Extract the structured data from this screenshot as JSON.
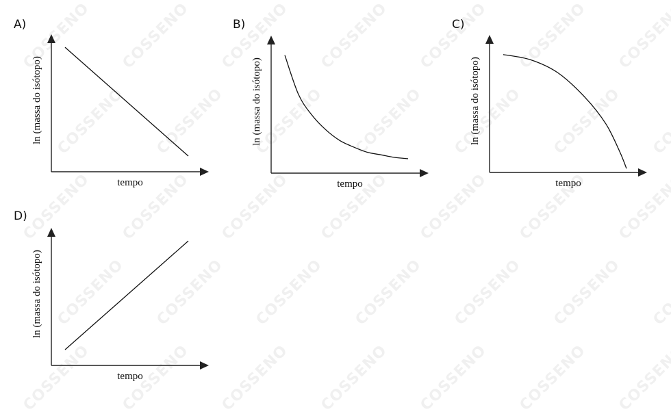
{
  "watermark": {
    "text": "COSSENO",
    "color": "#e9e9e9"
  },
  "colors": {
    "line": "#111111",
    "axis": "#222222"
  },
  "chart_data": [
    {
      "panel": "A)",
      "type": "line",
      "shape": "linear-decreasing",
      "xlabel": "tempo",
      "ylabel": "ln (massa do isótopo)",
      "x": [
        0.1,
        1.0
      ],
      "y": [
        0.95,
        0.12
      ],
      "xlim": [
        0,
        1.15
      ],
      "ylim": [
        0,
        1.05
      ],
      "grid": false
    },
    {
      "panel": "B)",
      "type": "line",
      "shape": "exponential-decay",
      "xlabel": "tempo",
      "ylabel": "ln (massa do isótopo)",
      "x": [
        0.1,
        0.2,
        0.3,
        0.4,
        0.5,
        0.6,
        0.7,
        0.8,
        0.9,
        1.0
      ],
      "y": [
        0.9,
        0.6,
        0.44,
        0.33,
        0.25,
        0.2,
        0.16,
        0.14,
        0.12,
        0.11
      ],
      "xlim": [
        0,
        1.15
      ],
      "ylim": [
        0,
        1.05
      ],
      "grid": false
    },
    {
      "panel": "C)",
      "type": "line",
      "shape": "concave-down-decreasing",
      "xlabel": "tempo",
      "ylabel": "ln (massa do isótopo)",
      "x": [
        0.1,
        0.3,
        0.5,
        0.7,
        0.85,
        0.95,
        1.0
      ],
      "y": [
        0.9,
        0.86,
        0.76,
        0.57,
        0.37,
        0.16,
        0.03
      ],
      "xlim": [
        0,
        1.15
      ],
      "ylim": [
        0,
        1.05
      ],
      "grid": false
    },
    {
      "panel": "D)",
      "type": "line",
      "shape": "linear-increasing",
      "xlabel": "tempo",
      "ylabel": "ln (massa do isótopo)",
      "x": [
        0.1,
        1.0
      ],
      "y": [
        0.12,
        0.95
      ],
      "xlim": [
        0,
        1.15
      ],
      "ylim": [
        0,
        1.05
      ],
      "grid": false
    }
  ]
}
